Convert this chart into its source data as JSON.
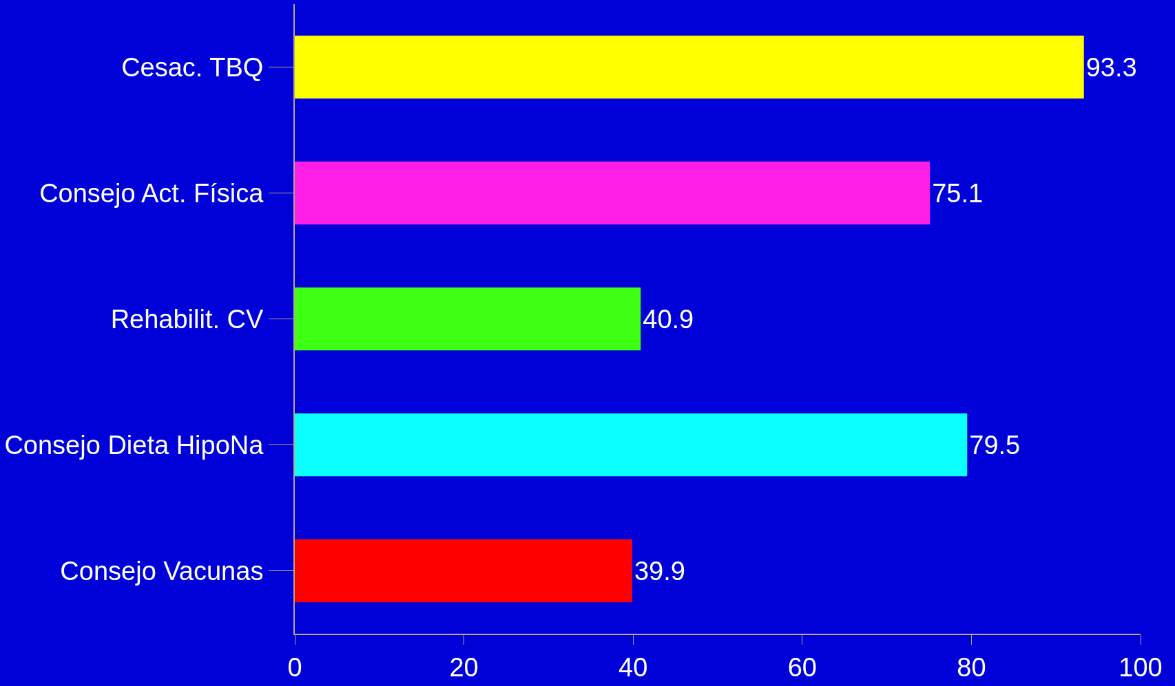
{
  "chart_data": {
    "type": "bar",
    "orientation": "horizontal",
    "categories": [
      "Cesac. TBQ",
      "Consejo Act. Física",
      "Rehabilit. CV",
      "Consejo Dieta HipoNa",
      "Consejo Vacunas"
    ],
    "values": [
      93.3,
      75.1,
      40.9,
      79.5,
      39.9
    ],
    "colors": [
      "#ffff00",
      "#ff1ee6",
      "#3cff12",
      "#0affff",
      "#ff0000"
    ],
    "xlim": [
      0,
      100
    ],
    "xticks": [
      0,
      20,
      40,
      60,
      80,
      100
    ],
    "data_labels": true,
    "grid": false,
    "legend": false
  }
}
